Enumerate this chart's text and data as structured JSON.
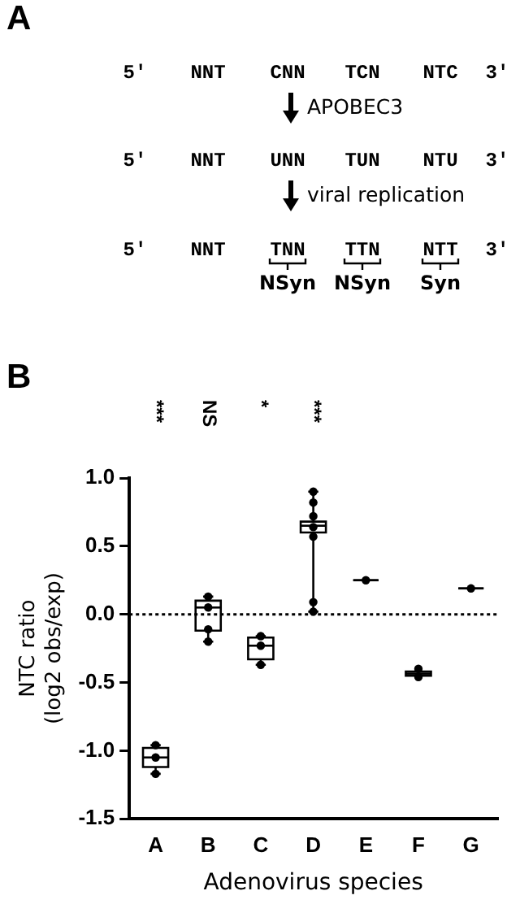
{
  "chart_data": [
    {
      "type": "other",
      "title": "A",
      "annotations": [
        "5′",
        "NNT",
        "CNN",
        "TCN",
        "NTC",
        "3′",
        "APOBEC3",
        "5′",
        "NNT",
        "UNN",
        "TUN",
        "NTU",
        "3′",
        "viral replication",
        "5′",
        "NNT",
        "TNN",
        "TTN",
        "NTT",
        "3′",
        "NSyn",
        "NSyn",
        "Syn"
      ]
    },
    {
      "type": "box",
      "title": "B",
      "xlabel": "Adenovirus species",
      "ylabel": "NTC ratio (log2 obs/exp)",
      "categories": [
        "A",
        "B",
        "C",
        "D",
        "E",
        "F",
        "G"
      ],
      "ylim": [
        -1.5,
        1.0
      ],
      "yticks": [
        {
          "value": -1.5,
          "label": "-1.5"
        },
        {
          "value": -1.0,
          "label": "-1.0"
        },
        {
          "value": -0.5,
          "label": "-0.5"
        },
        {
          "value": 0.0,
          "label": "0.0"
        },
        {
          "value": 0.5,
          "label": "0.5"
        },
        {
          "value": 1.0,
          "label": "1.0"
        }
      ],
      "grid": false,
      "legend": false,
      "color": "#000000",
      "boxes": [
        {
          "low": -1.17,
          "q1": -1.12,
          "median": -1.05,
          "q3": -0.98,
          "high": -0.96
        },
        {
          "low": -0.2,
          "q1": -0.12,
          "median": 0.05,
          "q3": 0.1,
          "high": 0.13
        },
        {
          "low": -0.37,
          "q1": -0.33,
          "median": -0.23,
          "q3": -0.17,
          "high": -0.16
        },
        {
          "low": 0.02,
          "q1": 0.6,
          "median": 0.65,
          "q3": 0.68,
          "high": 0.9
        },
        {
          "low": 0.25,
          "q1": 0.25,
          "median": 0.25,
          "q3": 0.25,
          "high": 0.25
        },
        {
          "low": -0.45,
          "q1": -0.45,
          "median": -0.435,
          "q3": -0.42,
          "high": -0.42
        },
        {
          "low": 0.19,
          "q1": 0.19,
          "median": 0.19,
          "q3": 0.19,
          "high": 0.19
        }
      ],
      "series": [
        {
          "type": "scatter",
          "color": "#000000",
          "marker": "circle",
          "x": [
            "A",
            "A",
            "A",
            "B",
            "B",
            "B",
            "B",
            "C",
            "C",
            "C",
            "D",
            "D",
            "D",
            "D",
            "D",
            "D",
            "D",
            "E",
            "F",
            "F",
            "G"
          ],
          "values": [
            -0.96,
            -1.05,
            -1.17,
            0.13,
            0.05,
            -0.11,
            -0.2,
            -0.16,
            -0.23,
            -0.37,
            0.9,
            0.82,
            0.72,
            0.64,
            0.57,
            0.09,
            0.02,
            0.25,
            -0.46,
            -0.4,
            0.19
          ]
        }
      ],
      "ref_lines": [
        {
          "axis": "y",
          "value": 0,
          "line_style": "dotted",
          "color": "#000000"
        }
      ],
      "annotations": [
        "***",
        "NS",
        "*",
        "***"
      ]
    }
  ]
}
